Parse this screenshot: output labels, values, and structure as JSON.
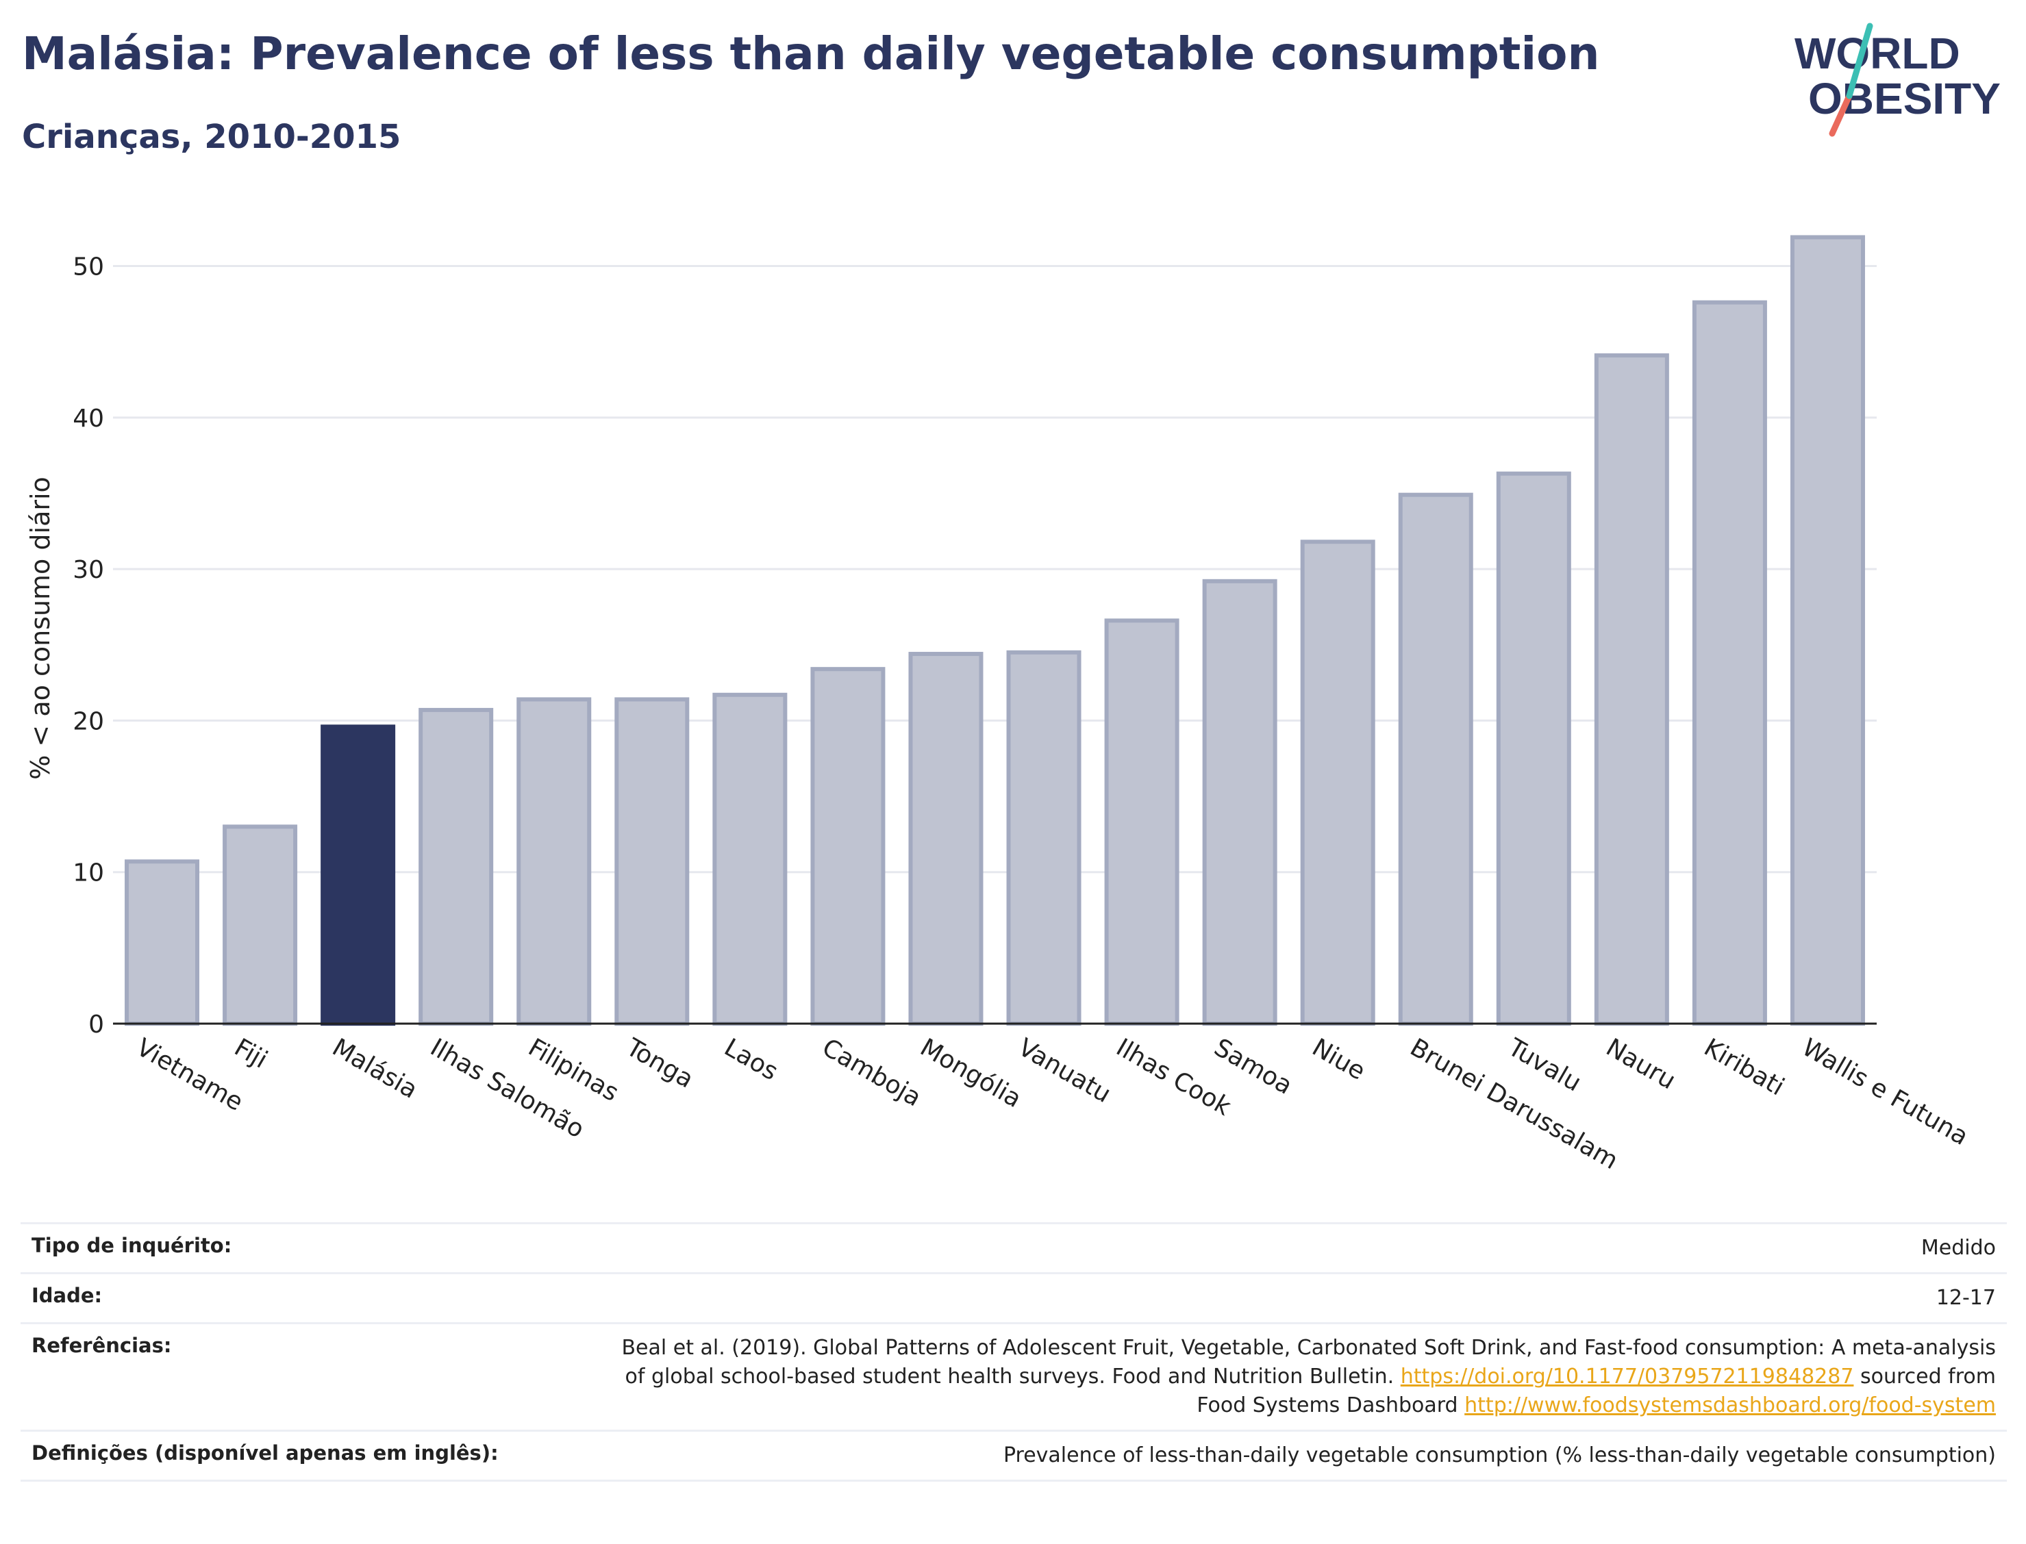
{
  "header": {
    "title": "Malásia: Prevalence of less than daily vegetable consumption",
    "subtitle": "Crianças, 2010-2015"
  },
  "logo": {
    "line1": "WORLD",
    "line2": "OBESITY",
    "color_text": "#2c3660",
    "color_teal": "#3cbfb4",
    "color_red": "#ea6a5c"
  },
  "chart_data": {
    "type": "bar",
    "ylabel": "% < ao consumo diário",
    "ylim": [
      0,
      54
    ],
    "yticks": [
      0,
      10,
      20,
      30,
      40,
      50
    ],
    "categories": [
      "Vietname",
      "Fiji",
      "Malásia",
      "Ilhas Salomão",
      "Filipinas",
      "Tonga",
      "Laos",
      "Camboja",
      "Mongólia",
      "Vanuatu",
      "Ilhas Cook",
      "Samoa",
      "Niue",
      "Brunei Darussalam",
      "Tuvalu",
      "Nauru",
      "Kiribati",
      "Wallis e Futuna"
    ],
    "values": [
      10.7,
      13.0,
      19.6,
      20.7,
      21.4,
      21.4,
      21.7,
      23.4,
      24.4,
      24.5,
      26.6,
      29.2,
      31.8,
      34.9,
      36.3,
      44.1,
      47.6,
      51.9
    ],
    "highlight": "Malásia",
    "highlight_color": "#2c3660",
    "bar_color": "#bfc3d1",
    "bar_edge_color": "#a3aac0",
    "grid": true
  },
  "info": {
    "survey_label": "Tipo de inquérito:",
    "survey_value": "Medido",
    "age_label": "Idade:",
    "age_value": "12-17",
    "refs_label": "Referências:",
    "refs_text1": "Beal et al. (2019). Global Patterns of Adolescent Fruit, Vegetable, Carbonated Soft Drink, and Fast-food consumption: A meta-analysis",
    "refs_text2": "of global school-based student health surveys. Food and Nutrition Bulletin.",
    "refs_link1": "https://doi.org/10.1177/0379572119848287",
    "refs_text3": "sourced from",
    "refs_text4": "Food Systems Dashboard",
    "refs_link2": "http://www.foodsystemsdashboard.org/food-system",
    "defs_label": "Definições (disponível apenas em inglês):",
    "defs_value": "Prevalence of less-than-daily vegetable consumption (% less-than-daily vegetable consumption)"
  }
}
